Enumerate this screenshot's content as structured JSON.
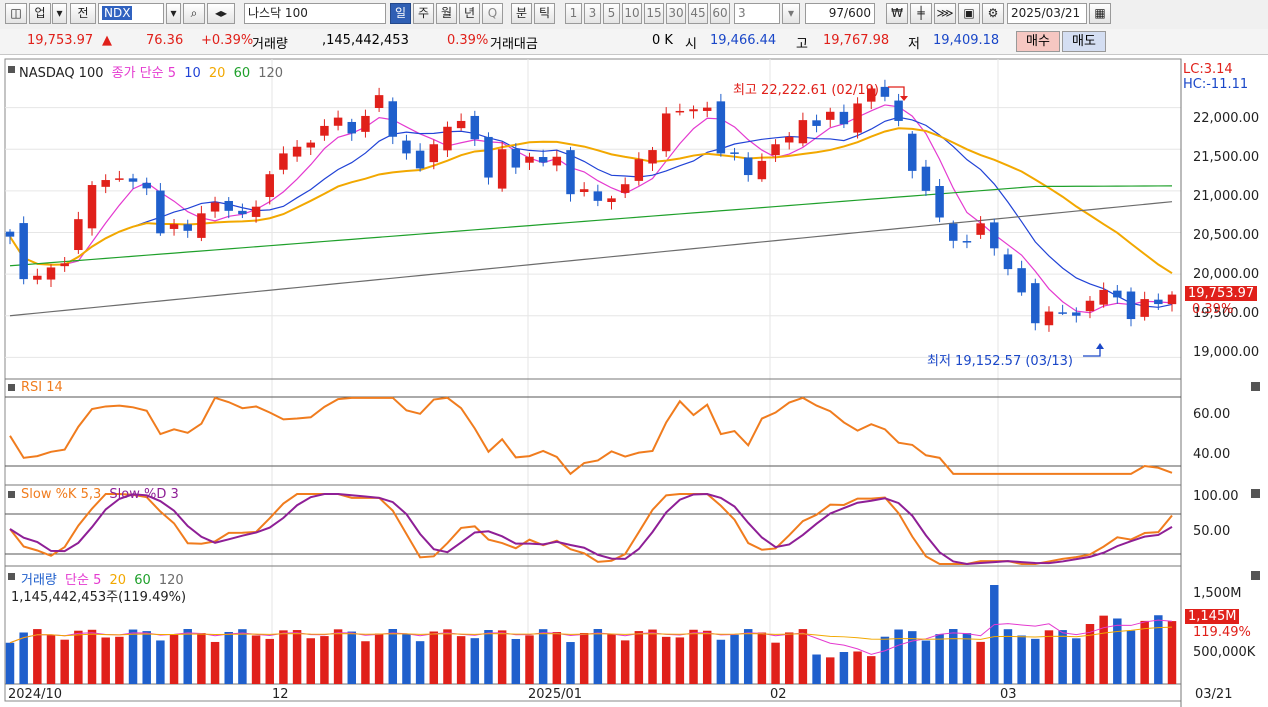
{
  "toolbar": {
    "market": "업",
    "prev": "전",
    "code": "NDX",
    "name": "나스닥 100",
    "periods": [
      "일",
      "주",
      "월",
      "년",
      "Q"
    ],
    "minute": [
      "분",
      "틱"
    ],
    "intervals": [
      "1",
      "3",
      "5",
      "10",
      "15",
      "30",
      "45",
      "60",
      "3"
    ],
    "count": "97/600",
    "date": "2025/03/21"
  },
  "quote": {
    "price": "19,753.97",
    "change": "76.36",
    "change_pct": "+0.39%",
    "vol_label": "거래량",
    "volume": ",145,442,453",
    "vol_pct": "0.39%",
    "amt_label": "거래대금",
    "amount": "0 K",
    "open_label": "시",
    "open": "19,466.44",
    "high_label": "고",
    "high": "19,767.98",
    "low_label": "저",
    "low": "19,409.18",
    "buy": "매수",
    "sell": "매도"
  },
  "price_panel": {
    "legend_name": "NASDAQ 100",
    "legend_ma": "종가 단순",
    "ma_periods": [
      "5",
      "10",
      "20",
      "60",
      "120"
    ],
    "lc": "LC:3.14",
    "hc": "HC:-11.11",
    "high_note": "최고 22,222.61 (02/19)",
    "low_note": "최저 19,152.57 (03/13)",
    "last_price": "19,753.97",
    "last_pct": "0.39%",
    "y_ticks": [
      "22,000.00",
      "21,500.00",
      "21,000.00",
      "20,500.00",
      "20,000.00",
      "19,500.00",
      "19,000.00"
    ]
  },
  "rsi_panel": {
    "label": "RSI 14",
    "y_ticks": [
      "60.00",
      "40.00"
    ]
  },
  "stoch_panel": {
    "label_k": "Slow %K 5,3",
    "label_d": "Slow %D 3",
    "y_ticks": [
      "100.00",
      "50.00"
    ]
  },
  "volume_panel": {
    "label": "거래량",
    "ma_label": "단순",
    "ma_periods": [
      "5",
      "20",
      "60",
      "120"
    ],
    "value_line": "1,145,442,453주(119.49%)",
    "last_vol": "1,145M",
    "last_pct": "119.49%",
    "y_ticks": [
      "1,500M",
      "500,000K"
    ]
  },
  "x_axis": {
    "labels": [
      "2024/10",
      "12",
      "2025/01",
      "02",
      "03"
    ],
    "last": "03/21"
  },
  "colors": {
    "up": "#e0201a",
    "down": "#1f5fcc",
    "ma5": "#e43ad0",
    "ma10": "#2143d6",
    "ma20": "#f2a800",
    "ma60": "#1fa02b",
    "ma120": "#6c6c6c",
    "rsi": "#f07c1e",
    "stoch_d": "#8e1f96"
  },
  "chart_data": {
    "type": "candlestick",
    "closes": [
      20450,
      19940,
      19980,
      20080,
      20130,
      20660,
      21070,
      21130,
      21150,
      21110,
      21030,
      20490,
      20600,
      20520,
      20730,
      20860,
      20760,
      20720,
      20810,
      21200,
      21450,
      21530,
      21580,
      21780,
      21880,
      21690,
      21900,
      22150,
      21650,
      21450,
      21270,
      21560,
      21770,
      21840,
      21620,
      21160,
      21500,
      21280,
      21410,
      21340,
      21410,
      20960,
      21020,
      20880,
      20910,
      21080,
      21380,
      21490,
      21930,
      21960,
      21980,
      22000,
      21450,
      21450,
      21190,
      21360,
      21560,
      21650,
      21850,
      21780,
      21950,
      21800,
      22050,
      22230,
      22130,
      21840,
      21240,
      21000,
      20680,
      20400,
      20380,
      20610,
      20310,
      20060,
      19780,
      19410,
      19550,
      19540,
      19500,
      19680,
      19810,
      19720,
      19460,
      19700,
      19640,
      19753.97
    ],
    "y_range": [
      18800,
      22500
    ]
  }
}
